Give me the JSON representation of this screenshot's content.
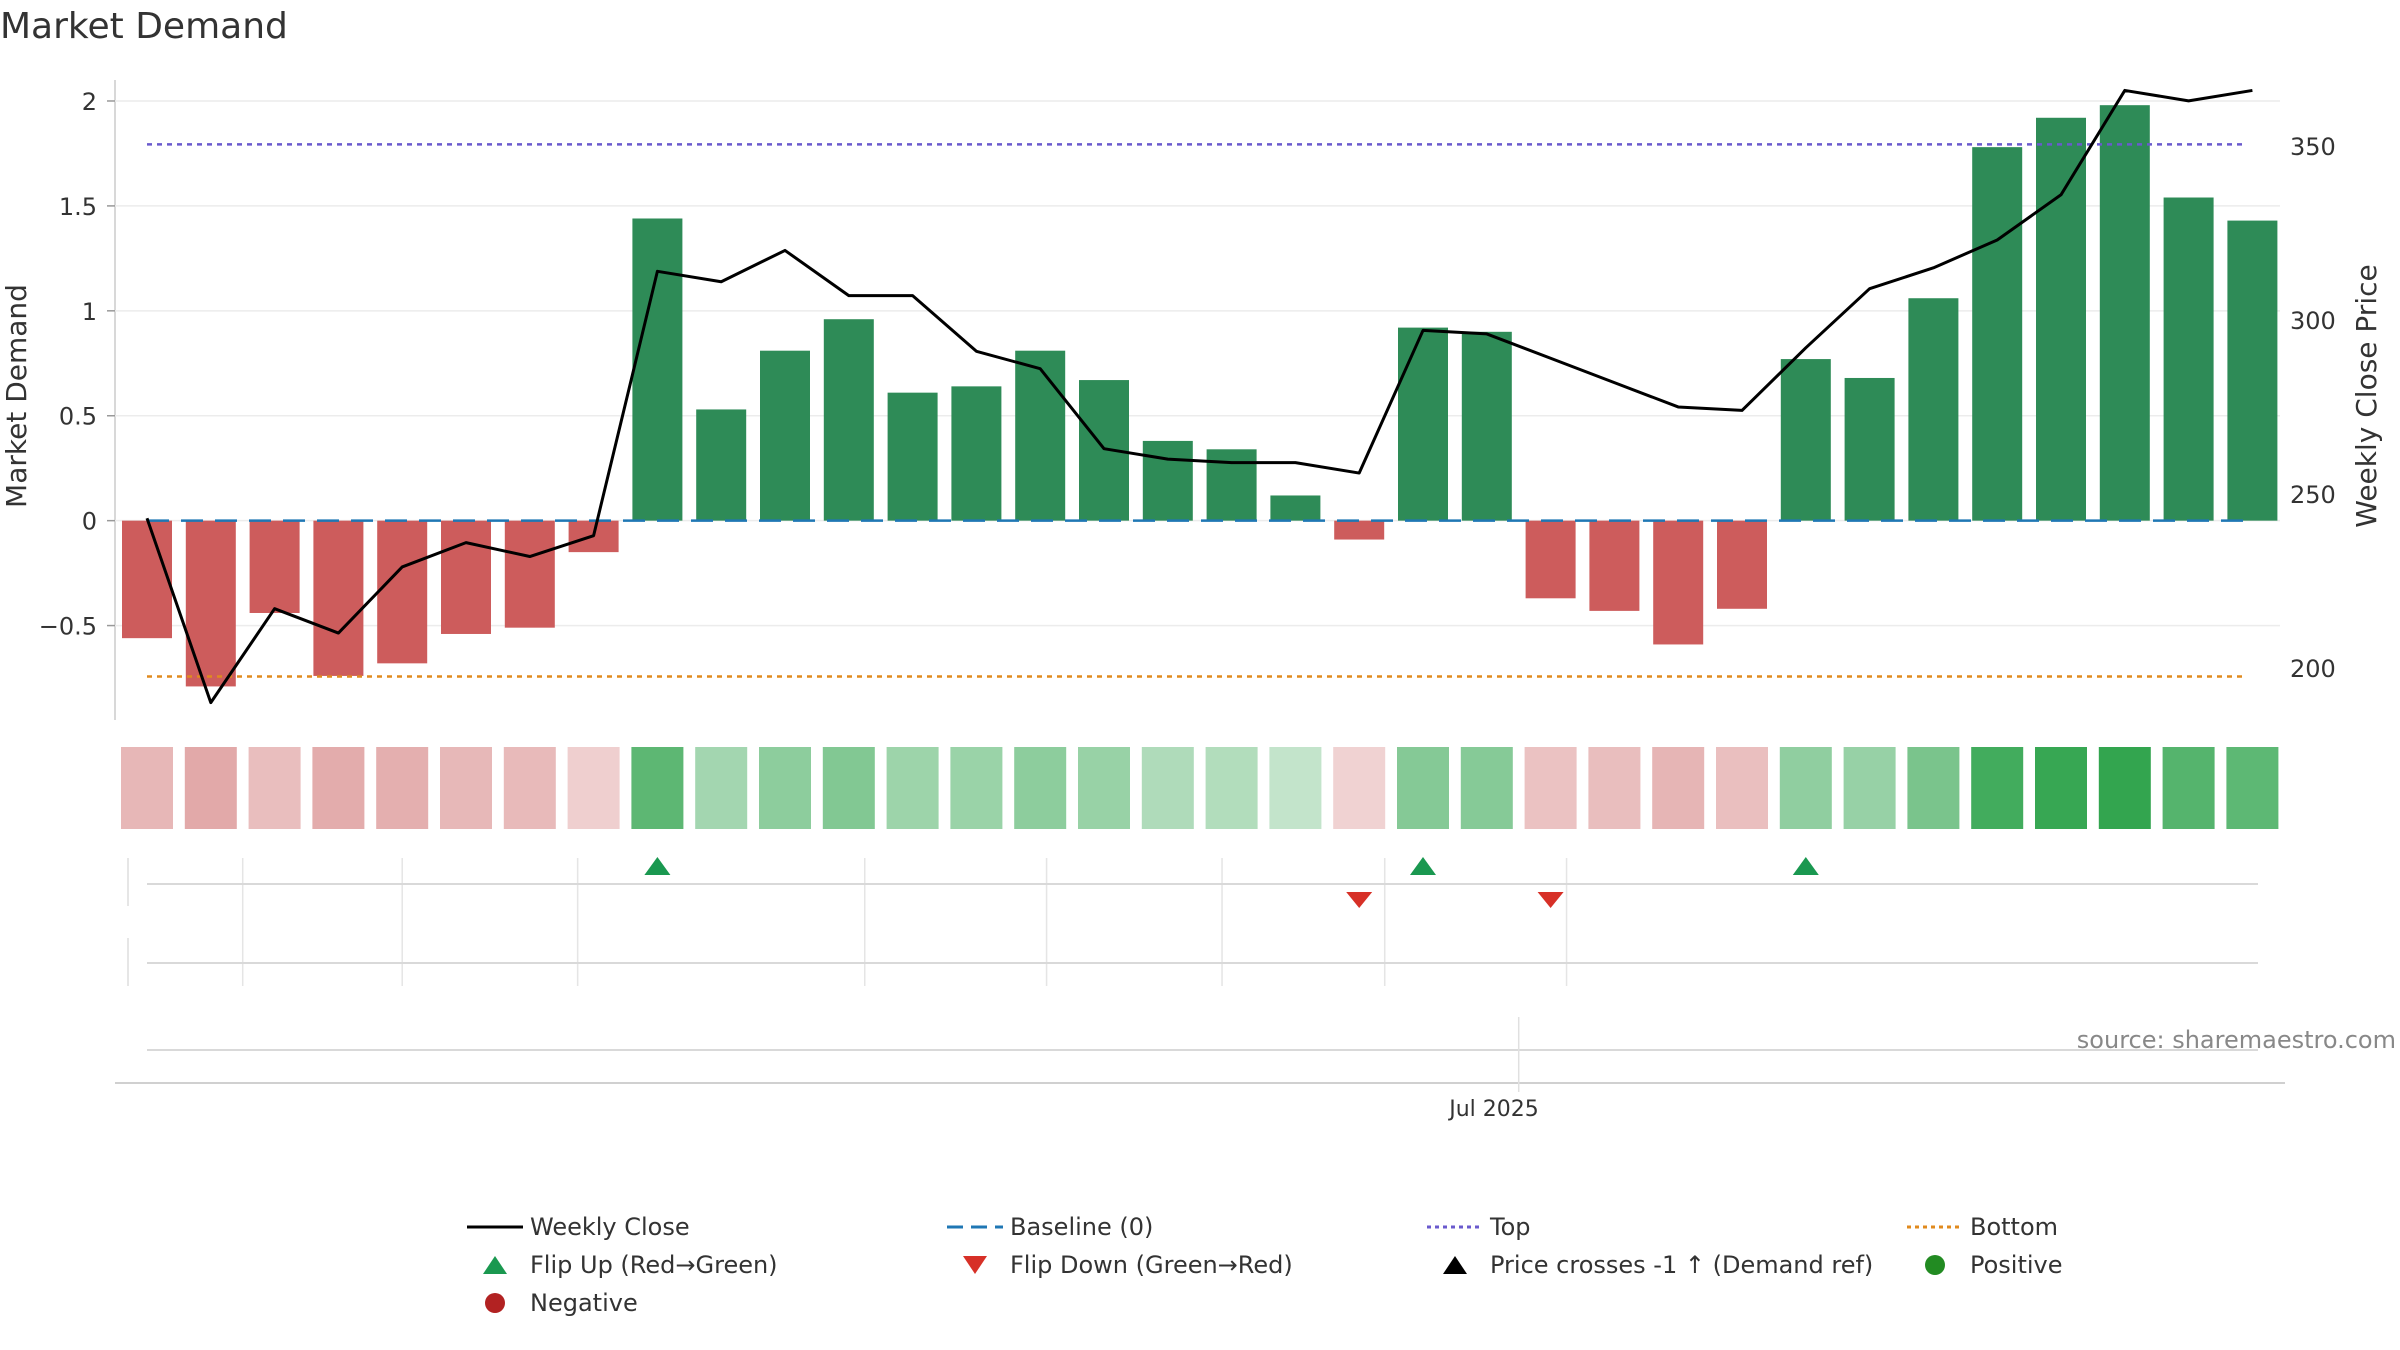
{
  "chart_data": {
    "type": "bar",
    "title": "Market Demand",
    "ylabel_left": "Market Demand",
    "ylabel_right": "Weekly Close Price",
    "ylim_left": [
      -0.95,
      2.1
    ],
    "ylim_right": [
      185,
      369
    ],
    "yticks_left": [
      -0.5,
      0,
      0.5,
      1,
      1.5,
      2
    ],
    "ytick_labels_left": [
      "−0.5",
      "0",
      "0.5",
      "1",
      "1.5",
      "2"
    ],
    "yticks_right": [
      200,
      250,
      300,
      350
    ],
    "ytick_labels_right": [
      "200",
      "250",
      "300",
      "350"
    ],
    "x_tick_label": "Jul 2025",
    "x_tick_index": 21.5,
    "demand": [
      -0.56,
      -0.79,
      -0.44,
      -0.74,
      -0.68,
      -0.54,
      -0.51,
      -0.15,
      1.44,
      0.53,
      0.81,
      0.96,
      0.61,
      0.64,
      0.81,
      0.67,
      0.38,
      0.34,
      0.12,
      -0.09,
      0.92,
      0.9,
      -0.37,
      -0.43,
      -0.59,
      -0.42,
      0.77,
      0.68,
      1.06,
      1.78,
      1.92,
      1.98,
      1.54,
      1.43
    ],
    "weekly_close": [
      243,
      190,
      217,
      210,
      229,
      236,
      232,
      238,
      314,
      311,
      320,
      307,
      307,
      291,
      286,
      263,
      260,
      259,
      259,
      256,
      297,
      296,
      289,
      282,
      275,
      274,
      292,
      309,
      315,
      323,
      336,
      366,
      363,
      366
    ],
    "top_level": 350.5,
    "bottom_level": 197.5,
    "baseline": 0,
    "flip_up_indices": [
      8,
      20,
      26
    ],
    "flip_down_indices": [
      19,
      22
    ],
    "source": "source: sharemaestro.com",
    "legend": [
      "Weekly Close",
      "Baseline (0)",
      "Top",
      "Bottom",
      "Flip Up (Red→Green)",
      "Flip Down (Green→Red)",
      "Price crosses -1 ↑ (Demand ref)",
      "Positive",
      "Negative"
    ],
    "colors": {
      "positive": "#2e8b57",
      "negative": "#cd5c5c",
      "close": "#000000",
      "baseline": "#1f77b4",
      "top": "#6a5acd",
      "bottom": "#e08a1e",
      "flip_up": "#1a9850",
      "flip_down": "#d73027",
      "positive_dot": "#228b22",
      "negative_dot": "#b22222"
    }
  }
}
